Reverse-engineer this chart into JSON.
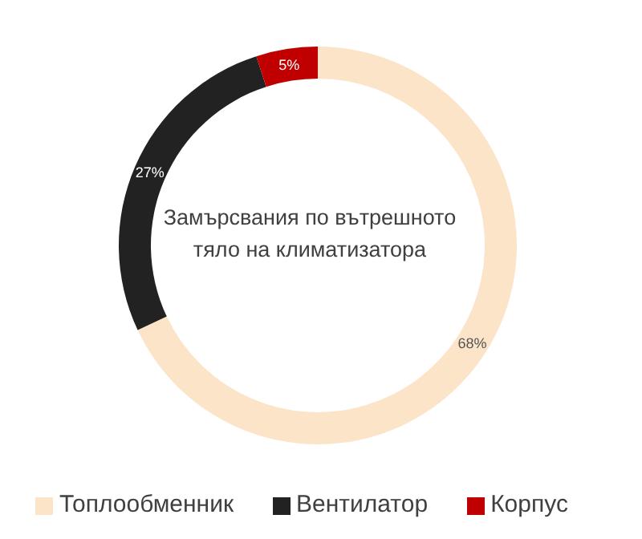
{
  "chart_data": {
    "type": "donut",
    "title": "Замърсвания по вътрешното тяло на климатизатора",
    "categories": [
      "Топлообменник",
      "Вентилатор",
      "Корпус"
    ],
    "values": [
      68,
      27,
      5
    ],
    "colors": [
      "#fce4c8",
      "#222222",
      "#c00000"
    ],
    "value_labels": [
      "68%",
      "27%",
      "5%"
    ],
    "legend": "bottom"
  }
}
